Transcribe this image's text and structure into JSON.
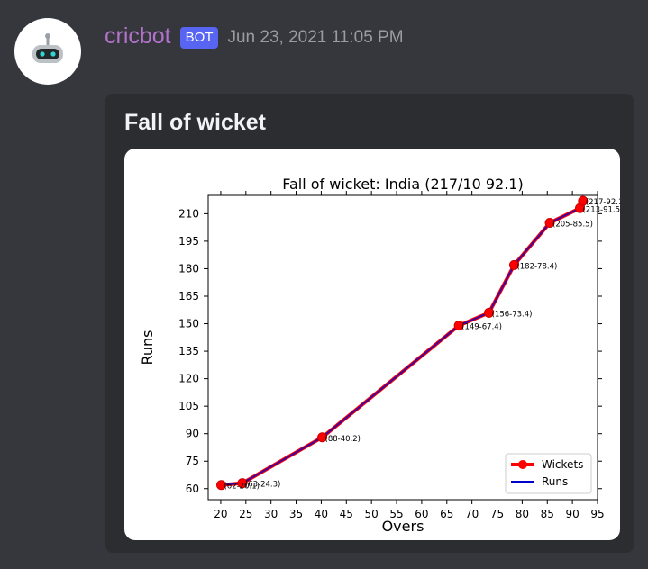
{
  "message": {
    "username": "cricbot",
    "bot_tag": "BOT",
    "timestamp": "Jun 23, 2021 11:05 PM"
  },
  "embed": {
    "title": "Fall of wicket"
  },
  "colors": {
    "username": "#b172c9",
    "bot_tag": "#5865f2",
    "background": "#35373c",
    "embed_bg": "#2b2d31",
    "wickets_line": "#ff0000",
    "runs_line": "#0000cc"
  },
  "chart_data": {
    "type": "line",
    "title": "Fall of wicket: India (217/10 92.1)",
    "xlabel": "Overs",
    "ylabel": "Runs",
    "xlim": [
      17.5,
      95
    ],
    "ylim": [
      54,
      220
    ],
    "xticks": [
      20,
      25,
      30,
      35,
      40,
      45,
      50,
      55,
      60,
      65,
      70,
      75,
      80,
      85,
      90,
      95
    ],
    "yticks": [
      60,
      75,
      90,
      105,
      120,
      135,
      150,
      165,
      180,
      195,
      210
    ],
    "legend_position": "lower-right",
    "series": [
      {
        "name": "Wickets",
        "x": [
          20.1,
          24.3,
          40.2,
          67.4,
          73.4,
          78.4,
          85.5,
          91.5,
          92.1
        ],
        "y": [
          62,
          63,
          88,
          149,
          156,
          182,
          205,
          213,
          217
        ]
      },
      {
        "name": "Runs",
        "x": [
          20.1,
          24.3,
          40.2,
          67.4,
          73.4,
          78.4,
          85.5,
          91.5,
          92.1
        ],
        "y": [
          62,
          63,
          88,
          149,
          156,
          182,
          205,
          213,
          217
        ]
      }
    ],
    "point_labels": [
      "(62-20.1)",
      "(63-24.3)",
      "(88-40.2)",
      "(149-67.4)",
      "(156-73.4)",
      "(182-78.4)",
      "(205-85.5)",
      "(213-91.5)",
      "(217-92.1)"
    ]
  }
}
